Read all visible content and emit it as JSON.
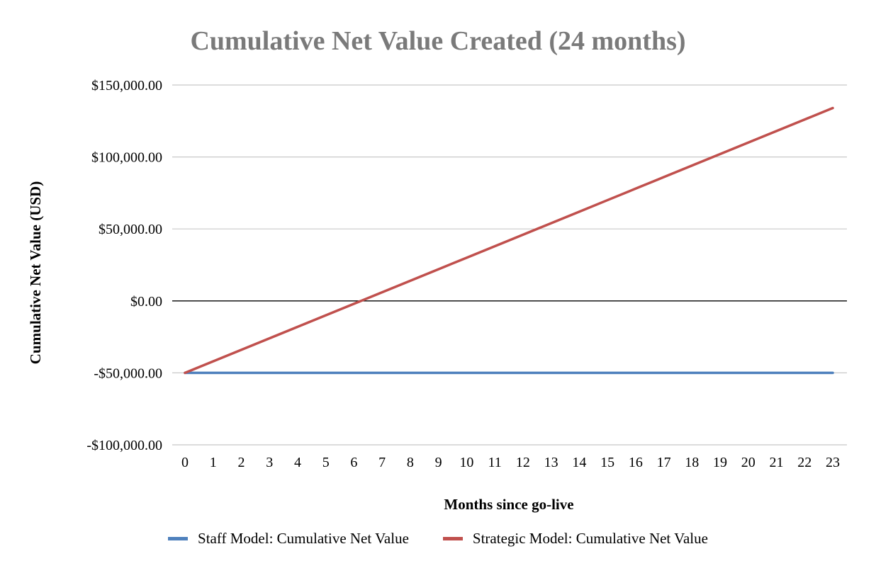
{
  "chart_data": {
    "type": "line",
    "title": "Cumulative Net Value Created (24 months)",
    "xlabel": "Months since go-live",
    "ylabel": "Cumulative Net Value (USD)",
    "x": [
      0,
      1,
      2,
      3,
      4,
      5,
      6,
      7,
      8,
      9,
      10,
      11,
      12,
      13,
      14,
      15,
      16,
      17,
      18,
      19,
      20,
      21,
      22,
      23
    ],
    "ylim": [
      -100000,
      150000
    ],
    "yticks": [
      150000,
      100000,
      50000,
      0,
      -50000,
      -100000
    ],
    "ytick_labels": [
      "$150,000.00",
      "$100,000.00",
      "$50,000.00",
      "$0.00",
      "-$50,000.00",
      "-$100,000.00"
    ],
    "grid": true,
    "legend_position": "bottom",
    "series": [
      {
        "name": "Staff Model: Cumulative Net Value",
        "color": "#4f81bd",
        "values": [
          -50000,
          -50000,
          -50000,
          -50000,
          -50000,
          -50000,
          -50000,
          -50000,
          -50000,
          -50000,
          -50000,
          -50000,
          -50000,
          -50000,
          -50000,
          -50000,
          -50000,
          -50000,
          -50000,
          -50000,
          -50000,
          -50000,
          -50000,
          -50000
        ]
      },
      {
        "name": "Strategic Model: Cumulative Net Value",
        "color": "#c0504d",
        "values": [
          -50000,
          -42000,
          -34000,
          -26000,
          -18000,
          -10000,
          -2000,
          6000,
          14000,
          22000,
          30000,
          38000,
          46000,
          54000,
          62000,
          70000,
          78000,
          86000,
          94000,
          102000,
          110000,
          118000,
          126000,
          134000
        ]
      }
    ]
  }
}
